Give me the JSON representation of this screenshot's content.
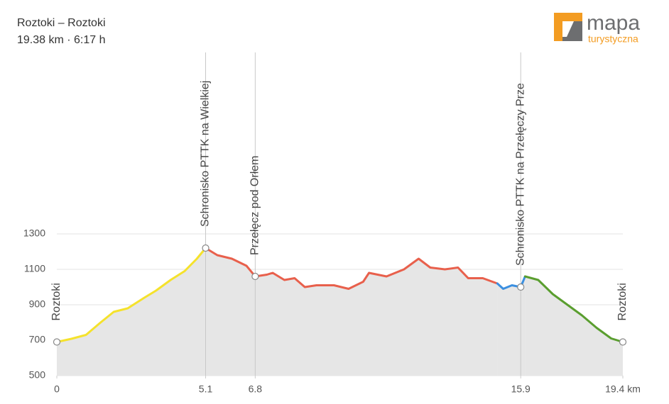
{
  "chart_data": {
    "type": "elevation",
    "title": "Roztoki – Roztoki",
    "subtitle": "19.38 km · 6:17 h",
    "xlim": [
      0,
      19.4
    ],
    "ylim": [
      500,
      1300
    ],
    "yticks": [
      500,
      700,
      900,
      1100,
      1300
    ],
    "xticks": [
      0,
      5.1,
      6.8,
      15.9,
      {
        "value": 19.4,
        "label": "19.4 km"
      }
    ],
    "grid": true,
    "area_color": "#e6e6e6",
    "series": [
      {
        "color": "#f5e22c",
        "x": [
          0,
          0.5,
          1.0,
          1.5,
          1.95,
          2.43,
          3.0,
          3.4,
          3.9,
          4.38,
          4.8,
          5.1
        ],
        "values": [
          690,
          708,
          730,
          800,
          860,
          880,
          940,
          980,
          1040,
          1090,
          1160,
          1220
        ]
      },
      {
        "color": "#e8604c",
        "x": [
          5.1,
          5.5,
          6.0,
          6.5,
          6.8,
          7.2,
          7.4,
          7.8,
          8.15,
          8.5,
          8.9,
          9.5,
          10.0,
          10.5,
          10.7,
          11.3,
          11.9,
          12.4,
          12.8,
          13.3,
          13.75,
          14.1,
          14.6,
          15.1
        ],
        "values": [
          1220,
          1180,
          1160,
          1120,
          1060,
          1070,
          1080,
          1040,
          1050,
          1000,
          1010,
          1010,
          990,
          1030,
          1080,
          1060,
          1100,
          1160,
          1110,
          1100,
          1110,
          1050,
          1050,
          1020
        ]
      },
      {
        "color": "#3b8fe0",
        "x": [
          15.1,
          15.3,
          15.6,
          15.9,
          16.05
        ],
        "values": [
          1020,
          990,
          1010,
          1000,
          1060
        ]
      },
      {
        "color": "#5a9e2f",
        "x": [
          16.05,
          16.5,
          17.0,
          17.5,
          18.0,
          18.5,
          19.0,
          19.4
        ],
        "values": [
          1060,
          1040,
          960,
          900,
          840,
          770,
          710,
          690
        ]
      }
    ],
    "markers": [
      {
        "x": 0,
        "y": 690,
        "label": "Roztoki"
      },
      {
        "x": 5.1,
        "y": 1220,
        "label": "Schronisko PTTK na Wielkiej"
      },
      {
        "x": 6.8,
        "y": 1060,
        "label": "Przełęcz pod Orłem"
      },
      {
        "x": 15.9,
        "y": 1000,
        "label": "Schronisko PTTK na Przełęczy Prze"
      },
      {
        "x": 19.4,
        "y": 690,
        "label": "Roztoki"
      }
    ]
  },
  "brand": {
    "name": "mapa",
    "tagline": "turystyczna"
  }
}
